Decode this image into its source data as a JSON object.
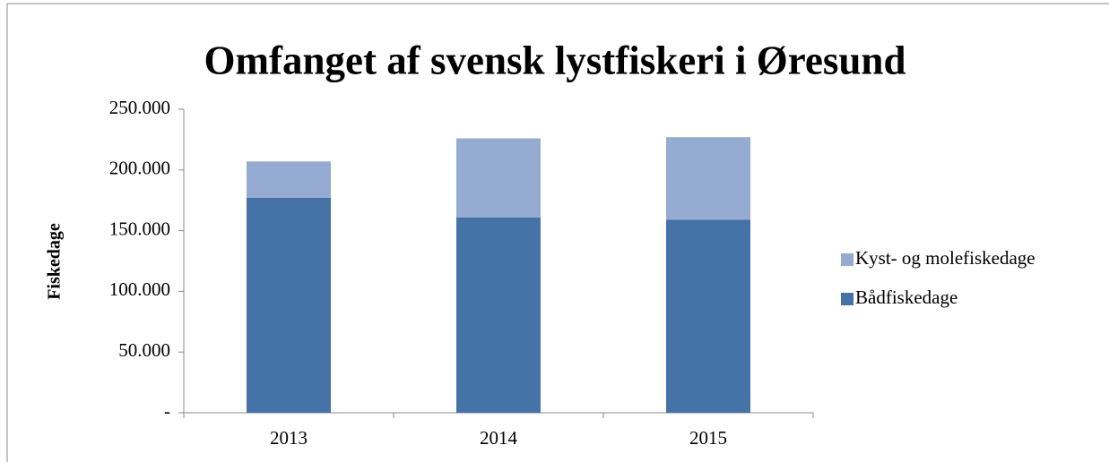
{
  "chart_data": {
    "type": "stacked_bar",
    "title": "Omfanget af svensk lystfiskeri i Øresund",
    "y_label": "Fiskedage",
    "categories": [
      "2013",
      "2014",
      "2015"
    ],
    "series": [
      {
        "name": "Bådfiskedage",
        "color": "#4573a7",
        "values": [
          177000,
          161000,
          159000
        ]
      },
      {
        "name": "Kyst- og molefiskedage",
        "color": "#96abd1",
        "values": [
          30000,
          65000,
          68000
        ]
      }
    ],
    "ylim": [
      0,
      250000
    ],
    "yticks": [
      {
        "value": 0,
        "label": "-"
      },
      {
        "value": 50000,
        "label": "50.000"
      },
      {
        "value": 100000,
        "label": "100.000"
      },
      {
        "value": 150000,
        "label": "150.000"
      },
      {
        "value": 200000,
        "label": "200.000"
      },
      {
        "value": 250000,
        "label": "250.000"
      }
    ],
    "grid": false,
    "legend": "right"
  }
}
